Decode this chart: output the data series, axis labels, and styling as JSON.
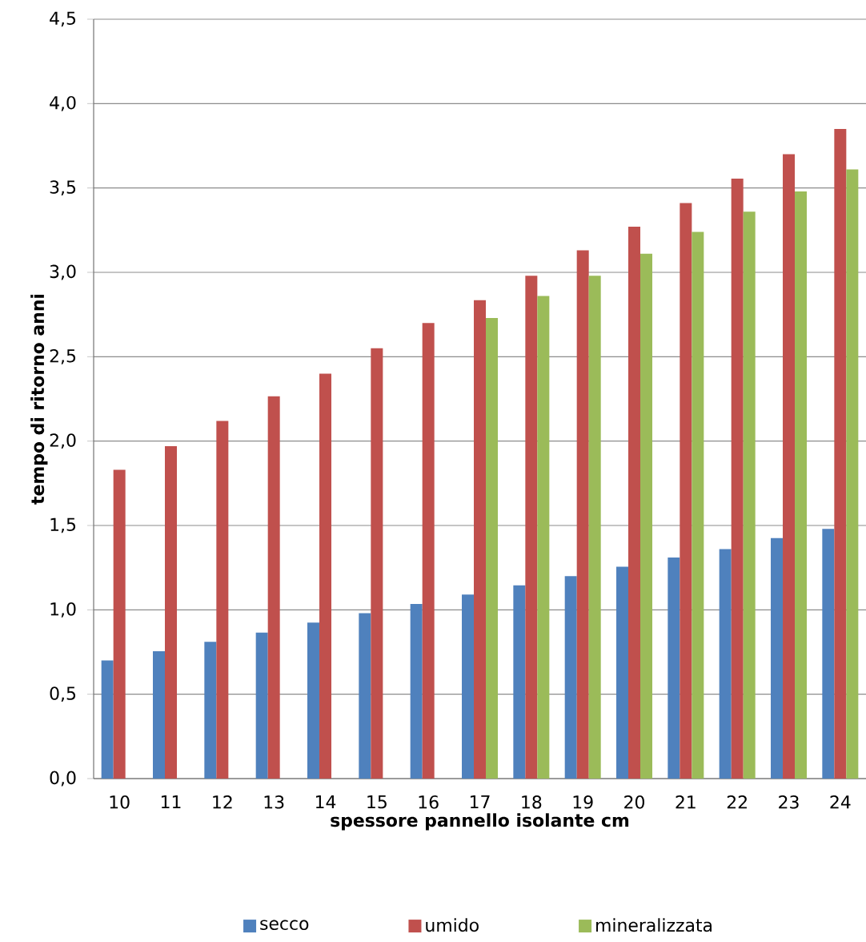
{
  "chart_data": {
    "type": "bar",
    "xlabel": "spessore pannello isolante cm",
    "ylabel": "tempo di ritorno anni",
    "categories": [
      "10",
      "11",
      "12",
      "13",
      "14",
      "15",
      "16",
      "17",
      "18",
      "19",
      "20",
      "21",
      "22",
      "23",
      "24"
    ],
    "series": [
      {
        "name": "secco",
        "color": "#4f81bd",
        "values": [
          0.7,
          0.755,
          0.81,
          0.865,
          0.925,
          0.98,
          1.035,
          1.09,
          1.145,
          1.2,
          1.255,
          1.31,
          1.36,
          1.425,
          1.48
        ]
      },
      {
        "name": "umido",
        "color": "#c0504d",
        "values": [
          1.83,
          1.97,
          2.12,
          2.265,
          2.4,
          2.55,
          2.7,
          2.835,
          2.98,
          3.13,
          3.27,
          3.41,
          3.555,
          3.7,
          3.85
        ]
      },
      {
        "name": "mineralizzata",
        "color": "#9bbb59",
        "values": [
          null,
          null,
          null,
          null,
          null,
          null,
          null,
          2.73,
          2.86,
          2.98,
          3.11,
          3.24,
          3.36,
          3.48,
          3.61
        ]
      }
    ],
    "ylim": [
      0,
      4.5
    ],
    "yticks": [
      {
        "value": 0,
        "label": "0,0"
      },
      {
        "value": 0.5,
        "label": "0,5"
      },
      {
        "value": 1,
        "label": "1,0"
      },
      {
        "value": 1.5,
        "label": "1,5"
      },
      {
        "value": 2,
        "label": "2,0"
      },
      {
        "value": 2.5,
        "label": "2,5"
      },
      {
        "value": 3,
        "label": "3,0"
      },
      {
        "value": 3.5,
        "label": "3,5"
      },
      {
        "value": 4,
        "label": "4,0"
      },
      {
        "value": 4.5,
        "label": "4,5"
      }
    ],
    "grid": "y",
    "legend": "bottom"
  }
}
